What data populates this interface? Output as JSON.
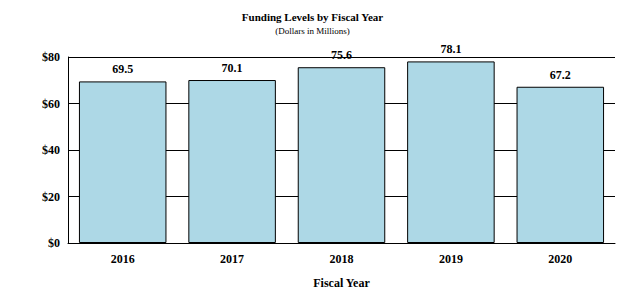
{
  "chart_data": {
    "type": "bar",
    "title": "Funding Levels by Fiscal Year",
    "subtitle": "(Dollars in Millions)",
    "x_label": "Fiscal Year",
    "categories": [
      "2016",
      "2017",
      "2018",
      "2019",
      "2020"
    ],
    "values": [
      69.5,
      70.1,
      75.6,
      78.1,
      67.2
    ],
    "color": "#add8e6",
    "ylim": [
      0,
      80
    ],
    "yticks": [
      {
        "value": 0,
        "label": "$0"
      },
      {
        "value": 20,
        "label": "$20"
      },
      {
        "value": 40,
        "label": "$40"
      },
      {
        "value": 60,
        "label": "$60"
      },
      {
        "value": 80,
        "label": "$80"
      }
    ],
    "grid": true,
    "data_labels": true
  }
}
